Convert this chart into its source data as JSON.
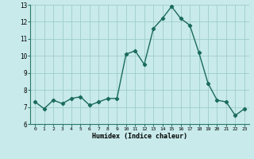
{
  "x": [
    0,
    1,
    2,
    3,
    4,
    5,
    6,
    7,
    8,
    9,
    10,
    11,
    12,
    13,
    14,
    15,
    16,
    17,
    18,
    19,
    20,
    21,
    22,
    23
  ],
  "y": [
    7.3,
    6.9,
    7.4,
    7.2,
    7.5,
    7.6,
    7.1,
    7.3,
    7.5,
    7.5,
    10.1,
    10.3,
    9.5,
    11.6,
    12.2,
    12.9,
    12.2,
    11.8,
    10.2,
    8.4,
    7.4,
    7.3,
    6.5,
    6.9
  ],
  "xlabel": "Humidex (Indice chaleur)",
  "ylim": [
    6,
    13
  ],
  "xlim": [
    -0.5,
    23.5
  ],
  "yticks": [
    6,
    7,
    8,
    9,
    10,
    11,
    12,
    13
  ],
  "xticks": [
    0,
    1,
    2,
    3,
    4,
    5,
    6,
    7,
    8,
    9,
    10,
    11,
    12,
    13,
    14,
    15,
    16,
    17,
    18,
    19,
    20,
    21,
    22,
    23
  ],
  "line_color": "#1a6b5a",
  "bg_color": "#c8eaea",
  "grid_color": "#a0cccc",
  "marker": "D",
  "marker_size": 2.2,
  "line_width": 1.0
}
